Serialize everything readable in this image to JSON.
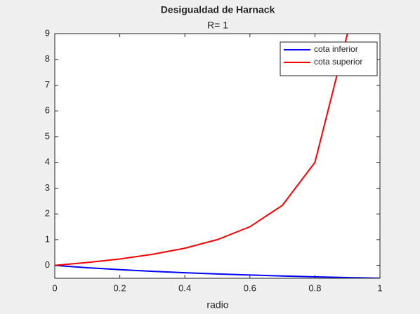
{
  "chart_data": {
    "type": "line",
    "title": "Desigualdad de Harnack",
    "subtitle": "R= 1",
    "x_label": "radio",
    "x": [
      0,
      0.1,
      0.2,
      0.3,
      0.4,
      0.5,
      0.6,
      0.7,
      0.8,
      0.9,
      1
    ],
    "series": [
      {
        "name": "cota inferior",
        "color": "#0000ff",
        "values": [
          0,
          -0.0909,
          -0.1667,
          -0.2308,
          -0.2857,
          -0.3333,
          -0.375,
          -0.4118,
          -0.4444,
          -0.4737,
          -0.5
        ]
      },
      {
        "name": "cota superior",
        "color": "#ff0000",
        "values": [
          0,
          0.1111,
          0.25,
          0.4286,
          0.6667,
          1,
          1.5,
          2.3333,
          4,
          9,
          null
        ]
      }
    ],
    "xlim": [
      0,
      1
    ],
    "xticks": [
      0,
      0.2,
      0.4,
      0.6,
      0.8,
      1
    ],
    "ylim": [
      -0.5,
      9
    ],
    "yticks": [
      0,
      1,
      2,
      3,
      4,
      5,
      6,
      7,
      8,
      9
    ],
    "legend": "upper right"
  }
}
